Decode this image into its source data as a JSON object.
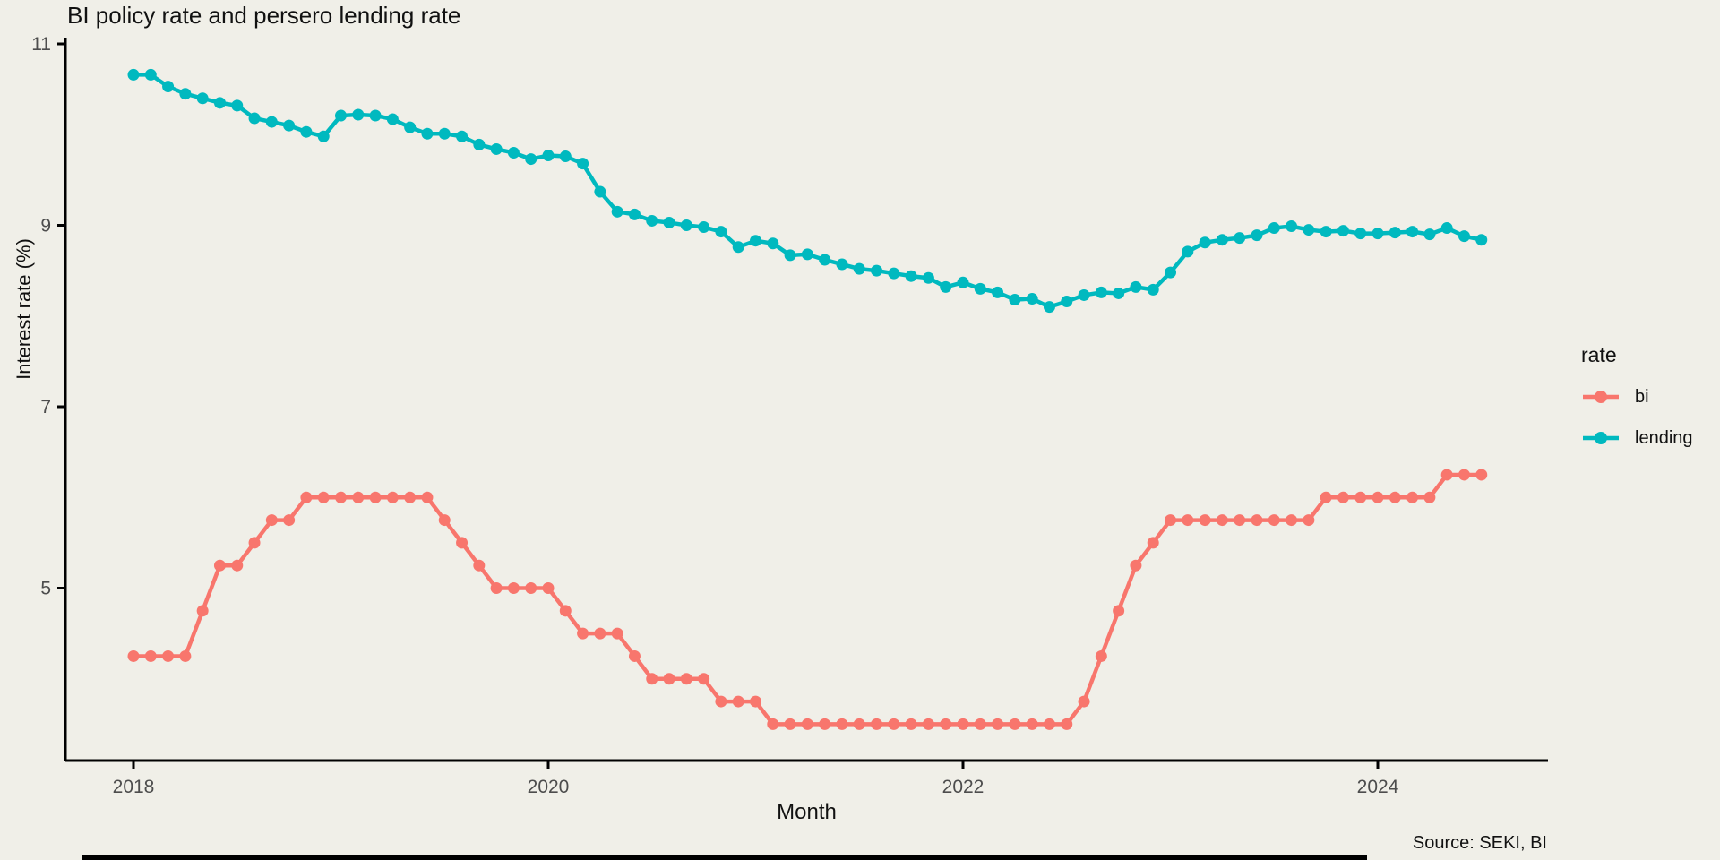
{
  "figure": {
    "title": "BI policy rate and persero lending rate",
    "x_axis_title": "Month",
    "y_axis_title": "Interest rate (%)",
    "source_caption": "Source: SEKI, BI",
    "background_color": "#F0EFE8",
    "axis_color": "#000000",
    "tick_label_color": "#4D4D4D"
  },
  "legend": {
    "title": "rate",
    "items": [
      {
        "label": "bi",
        "color": "#F8766D"
      },
      {
        "label": "lending",
        "color": "#00B9BF"
      }
    ]
  },
  "chart_data": {
    "type": "line",
    "title": "BI policy rate and persero lending rate",
    "xlabel": "Month",
    "ylabel": "Interest rate (%)",
    "grid": false,
    "legend_position": "right",
    "marker": "point",
    "ylim": [
      3.1,
      11.07
    ],
    "y_ticks": [
      5,
      7,
      9,
      11
    ],
    "x_ticks": [
      {
        "label": "2018",
        "month_index": 0
      },
      {
        "label": "2020",
        "month_index": 24
      },
      {
        "label": "2022",
        "month_index": 48
      },
      {
        "label": "2024",
        "month_index": 72
      }
    ],
    "x": [
      "2018-01",
      "2018-02",
      "2018-03",
      "2018-04",
      "2018-05",
      "2018-06",
      "2018-07",
      "2018-08",
      "2018-09",
      "2018-10",
      "2018-11",
      "2018-12",
      "2019-01",
      "2019-02",
      "2019-03",
      "2019-04",
      "2019-05",
      "2019-06",
      "2019-07",
      "2019-08",
      "2019-09",
      "2019-10",
      "2019-11",
      "2019-12",
      "2020-01",
      "2020-02",
      "2020-03",
      "2020-04",
      "2020-05",
      "2020-06",
      "2020-07",
      "2020-08",
      "2020-09",
      "2020-10",
      "2020-11",
      "2020-12",
      "2021-01",
      "2021-02",
      "2021-03",
      "2021-04",
      "2021-05",
      "2021-06",
      "2021-07",
      "2021-08",
      "2021-09",
      "2021-10",
      "2021-11",
      "2021-12",
      "2022-01",
      "2022-02",
      "2022-03",
      "2022-04",
      "2022-05",
      "2022-06",
      "2022-07",
      "2022-08",
      "2022-09",
      "2022-10",
      "2022-11",
      "2022-12",
      "2023-01",
      "2023-02",
      "2023-03",
      "2023-04",
      "2023-05",
      "2023-06",
      "2023-07",
      "2023-08",
      "2023-09",
      "2023-10",
      "2023-11",
      "2023-12",
      "2024-01",
      "2024-02",
      "2024-03",
      "2024-04",
      "2024-05",
      "2024-06",
      "2024-07"
    ],
    "series": [
      {
        "name": "bi",
        "color": "#F8766D",
        "values": [
          4.25,
          4.25,
          4.25,
          4.25,
          4.75,
          5.25,
          5.25,
          5.5,
          5.75,
          5.75,
          6,
          6,
          6,
          6,
          6,
          6,
          6,
          6,
          5.75,
          5.5,
          5.25,
          5,
          5,
          5,
          5,
          4.75,
          4.5,
          4.5,
          4.5,
          4.25,
          4,
          4,
          4,
          4,
          3.75,
          3.75,
          3.75,
          3.5,
          3.5,
          3.5,
          3.5,
          3.5,
          3.5,
          3.5,
          3.5,
          3.5,
          3.5,
          3.5,
          3.5,
          3.5,
          3.5,
          3.5,
          3.5,
          3.5,
          3.5,
          3.75,
          4.25,
          4.75,
          5.25,
          5.5,
          5.75,
          5.75,
          5.75,
          5.75,
          5.75,
          5.75,
          5.75,
          5.75,
          5.75,
          6,
          6,
          6,
          6,
          6,
          6,
          6,
          6.25,
          6.25,
          6.25
        ]
      },
      {
        "name": "lending",
        "color": "#00B9BF",
        "values": [
          10.66,
          10.66,
          10.53,
          10.45,
          10.4,
          10.35,
          10.32,
          10.18,
          10.14,
          10.1,
          10.03,
          9.98,
          10.21,
          10.22,
          10.21,
          10.17,
          10.08,
          10.01,
          10.01,
          9.98,
          9.89,
          9.84,
          9.8,
          9.73,
          9.77,
          9.76,
          9.68,
          9.37,
          9.15,
          9.12,
          9.05,
          9.03,
          9.0,
          8.98,
          8.93,
          8.76,
          8.83,
          8.8,
          8.67,
          8.68,
          8.62,
          8.57,
          8.52,
          8.5,
          8.47,
          8.44,
          8.42,
          8.32,
          8.37,
          8.3,
          8.26,
          8.18,
          8.19,
          8.1,
          8.16,
          8.23,
          8.26,
          8.25,
          8.32,
          8.29,
          8.48,
          8.71,
          8.81,
          8.84,
          8.86,
          8.89,
          8.97,
          8.99,
          8.95,
          8.93,
          8.94,
          8.91,
          8.91,
          8.92,
          8.93,
          8.9,
          8.97,
          8.88,
          8.84
        ]
      }
    ]
  }
}
